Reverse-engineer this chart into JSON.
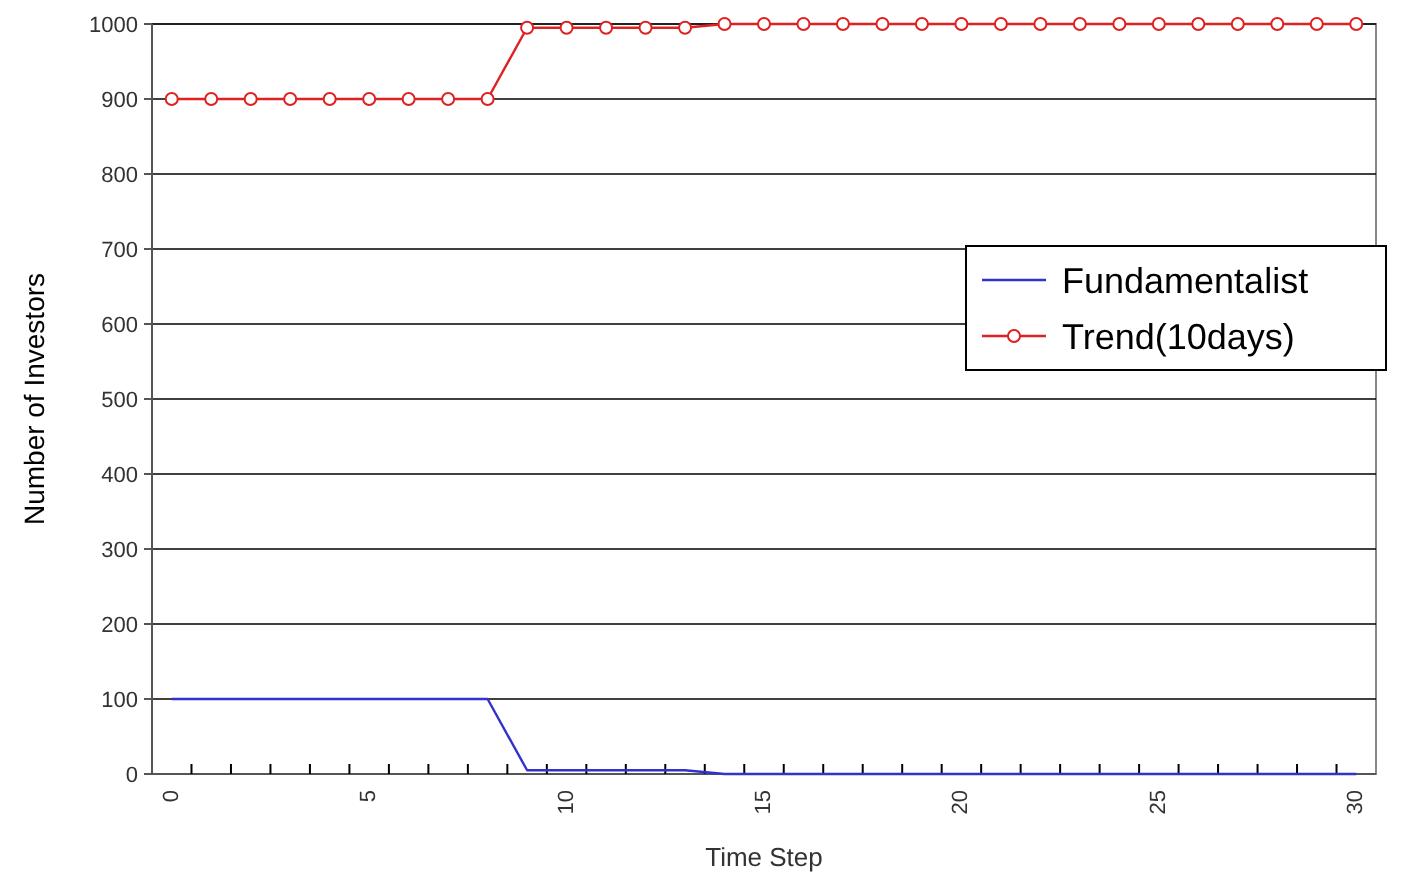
{
  "chart_data": {
    "type": "line",
    "xlabel": "Time Step",
    "ylabel": "Number of Investors",
    "categories": [
      "0",
      null,
      null,
      null,
      null,
      "5",
      null,
      null,
      null,
      null,
      "10",
      null,
      null,
      null,
      null,
      "15",
      null,
      null,
      null,
      null,
      "20",
      null,
      null,
      null,
      null,
      "25",
      null,
      null,
      null,
      null,
      "30"
    ],
    "ylim": [
      0,
      1000
    ],
    "yticks": [
      0,
      100,
      200,
      300,
      400,
      500,
      600,
      700,
      800,
      900,
      1000
    ],
    "grid": "y",
    "legend": "right",
    "series": [
      {
        "name": "Fundamentalist",
        "color": "#3333cc",
        "marker": "none",
        "values": [
          100,
          100,
          100,
          100,
          100,
          100,
          100,
          100,
          100,
          5,
          5,
          5,
          5,
          5,
          0,
          0,
          0,
          0,
          0,
          0,
          0,
          0,
          0,
          0,
          0,
          0,
          0,
          0,
          0,
          0,
          0
        ]
      },
      {
        "name": "Trend(10days)",
        "color": "#dd2222",
        "marker": "circle",
        "values": [
          900,
          900,
          900,
          900,
          900,
          900,
          900,
          900,
          900,
          995,
          995,
          995,
          995,
          995,
          1000,
          1000,
          1000,
          1000,
          1000,
          1000,
          1000,
          1000,
          1000,
          1000,
          1000,
          1000,
          1000,
          1000,
          1000,
          1000,
          1000
        ]
      }
    ]
  }
}
